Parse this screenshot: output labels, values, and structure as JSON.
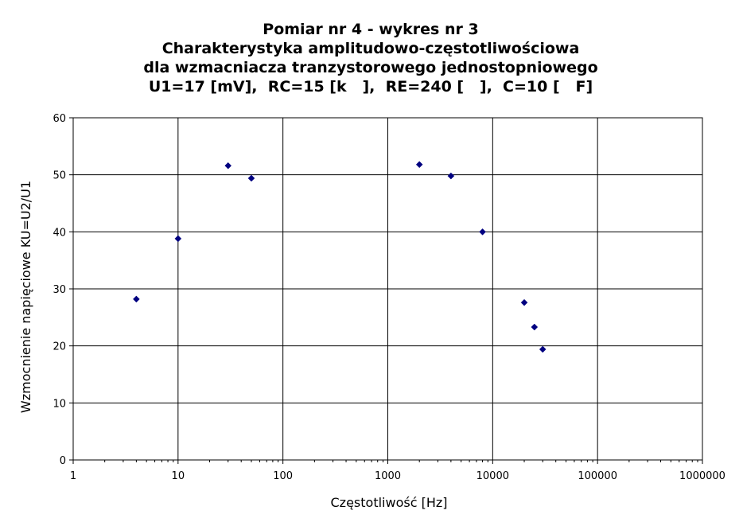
{
  "chart_data": {
    "type": "scatter",
    "title_lines": [
      "Pomiar nr 4 - wykres nr 3",
      "Charakterystyka amplitudowo-częstotliwościowa",
      "dla wzmacniacza tranzystorowego jednostopniowego",
      "U1=17 [mV],  RC=15 [k   ],  RE=240 [   ],  C=10 [   F]"
    ],
    "xlabel": "Częstotliwość [Hz]",
    "ylabel": "Wzmocnienie napięciowe KU=U2/U1",
    "x_scale": "log",
    "xlim": [
      1,
      1000000
    ],
    "ylim": [
      0,
      60
    ],
    "x_ticks": [
      1,
      10,
      100,
      1000,
      10000,
      100000,
      1000000
    ],
    "x_tick_labels": [
      "1",
      "10",
      "100",
      "1000",
      "10000",
      "100000",
      "1000000"
    ],
    "y_ticks": [
      0,
      10,
      20,
      30,
      40,
      50,
      60
    ],
    "y_tick_labels": [
      "0",
      "10",
      "20",
      "30",
      "40",
      "50",
      "60"
    ],
    "grid": "major",
    "legend": "none",
    "marker": "diamond",
    "marker_color": "#000080",
    "series": [
      {
        "x": [
          4,
          10,
          30,
          50,
          2000,
          4000,
          8000,
          20000,
          25000,
          30000
        ],
        "y": [
          28.2,
          38.8,
          51.6,
          49.4,
          51.8,
          49.8,
          40.0,
          27.6,
          23.3,
          19.4
        ]
      }
    ]
  }
}
